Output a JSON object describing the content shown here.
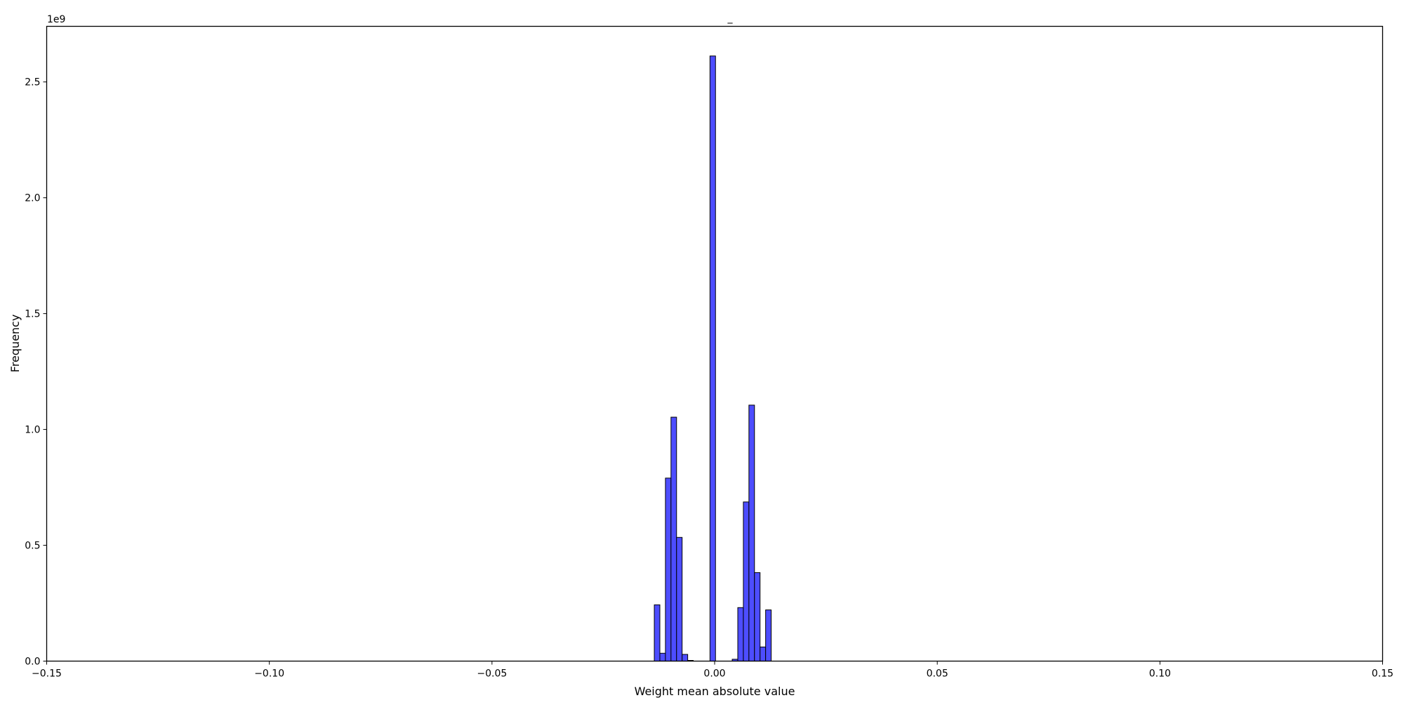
{
  "chart_data": {
    "type": "bar",
    "title": "_",
    "xlabel": "Weight mean absolute value",
    "ylabel": "Frequency",
    "y_offset_label": "1e9",
    "xlim": [
      -0.15,
      0.15
    ],
    "ylim": [
      0,
      2740000000.0
    ],
    "xticks": [
      -0.15,
      -0.1,
      -0.05,
      0.0,
      0.05,
      0.1,
      0.15
    ],
    "xtick_labels": [
      "−0.15",
      "−0.10",
      "−0.05",
      "0.00",
      "0.05",
      "0.10",
      "0.15"
    ],
    "yticks": [
      0,
      500000000.0,
      1000000000.0,
      1500000000.0,
      2000000000.0,
      2500000000.0
    ],
    "ytick_labels": [
      "0.0",
      "0.5",
      "1.0",
      "1.5",
      "2.0",
      "2.5"
    ],
    "grid": false,
    "bar_color": "#4d4dff",
    "edge_color": "#000000",
    "bin_start": -0.01355,
    "bin_width": 0.00125,
    "values": [
      243000000.0,
      34000000.0,
      790000000.0,
      1053000000.0,
      534000000.0,
      29000000.0,
      3000000.0,
      0,
      0,
      0,
      2612000000.0,
      0,
      0,
      0,
      8000000.0,
      231000000.0,
      687000000.0,
      1105000000.0,
      382000000.0,
      61000000.0,
      221000000.0
    ]
  }
}
